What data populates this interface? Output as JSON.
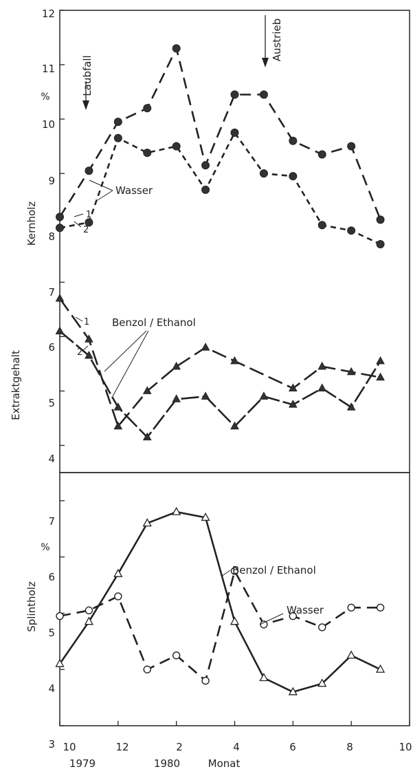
{
  "chart_data": [
    {
      "type": "line",
      "panel": "upper",
      "title": "",
      "xlabel": "Monat",
      "ylabel": "Extraktgehalt",
      "ylabel_secondary": "Kernholz",
      "unit_label": "%",
      "xlim": [
        10,
        22
      ],
      "ylim": [
        3.5,
        12
      ],
      "x_ticks": [
        10,
        12,
        14,
        16,
        18,
        20,
        22
      ],
      "x_tick_labels": [
        "10",
        "12",
        "2",
        "4",
        "6",
        "8",
        "10"
      ],
      "y_ticks": [
        4,
        5,
        6,
        7,
        8,
        9,
        10,
        11,
        12
      ],
      "year_labels": [
        {
          "x": 10,
          "text": "1979"
        },
        {
          "x": 14,
          "text": "1980"
        }
      ],
      "series": [
        {
          "label": "1",
          "marker": "filled-circle",
          "line": "dashed",
          "x": [
            10,
            11,
            12,
            13,
            14,
            15,
            16,
            17,
            18,
            19,
            20,
            21
          ],
          "y": [
            8.2,
            9.05,
            9.95,
            10.2,
            11.3,
            9.15,
            10.45,
            10.45,
            9.6,
            9.35,
            9.5,
            8.15
          ]
        },
        {
          "label": "2",
          "marker": "filled-circle",
          "line": "dash-dot",
          "x": [
            10,
            11,
            12,
            13,
            14,
            15,
            16,
            17,
            18,
            19,
            20,
            21
          ],
          "y": [
            8.0,
            8.1,
            9.65,
            9.38,
            9.5,
            8.7,
            9.75,
            9.0,
            8.95,
            8.05,
            7.95,
            7.7
          ]
        },
        {
          "label": "1",
          "marker": "filled-triangle",
          "line": "long-dash",
          "x": [
            10,
            11,
            12,
            13,
            14,
            15,
            16,
            18,
            19,
            20,
            21
          ],
          "y": [
            6.7,
            5.95,
            4.35,
            5.0,
            5.45,
            5.8,
            5.55,
            5.05,
            5.45,
            5.35,
            5.25
          ]
        },
        {
          "label": "2",
          "marker": "filled-triangle",
          "line": "solid-dash",
          "x": [
            10,
            11,
            12,
            13,
            14,
            15,
            16,
            17,
            18,
            19,
            20,
            21
          ],
          "y": [
            6.1,
            5.65,
            4.7,
            4.15,
            4.85,
            4.9,
            4.35,
            4.9,
            4.75,
            5.05,
            4.7,
            5.55
          ]
        }
      ],
      "annotations": [
        {
          "text": "Laubfall",
          "x": 11,
          "arrow": "down"
        },
        {
          "text": "Austrieb",
          "x": 17,
          "arrow": "down"
        },
        {
          "text": "Wasser",
          "refers_to": [
            "1",
            "2"
          ],
          "group": "circles"
        },
        {
          "text": "Benzol / Ethanol",
          "refers_to": [
            "1",
            "2"
          ],
          "group": "triangles"
        }
      ]
    },
    {
      "type": "line",
      "panel": "lower",
      "title": "",
      "xlabel": "Monat",
      "ylabel": "Splintholz",
      "unit_label": "%",
      "xlim": [
        10,
        22
      ],
      "ylim": [
        3,
        7.5
      ],
      "x_ticks": [
        10,
        12,
        14,
        16,
        18,
        20,
        22
      ],
      "x_tick_labels": [
        "10",
        "12",
        "2",
        "4",
        "6",
        "8",
        "10"
      ],
      "y_ticks": [
        3,
        4,
        5,
        6,
        7
      ],
      "year_labels": [
        {
          "x": 10,
          "text": "1979"
        },
        {
          "x": 14,
          "text": "1980"
        }
      ],
      "series": [
        {
          "name": "Benzol / Ethanol",
          "marker": "open-triangle",
          "line": "solid",
          "x": [
            10,
            11,
            12,
            13,
            14,
            15,
            16,
            17,
            18,
            19,
            20,
            21
          ],
          "y": [
            4.1,
            4.85,
            5.7,
            6.6,
            6.8,
            6.7,
            4.85,
            3.85,
            3.6,
            3.75,
            4.25,
            4.0
          ]
        },
        {
          "name": "Wasser",
          "marker": "open-circle",
          "line": "dashed",
          "x": [
            10,
            11,
            12,
            13,
            14,
            15,
            16,
            17,
            18,
            19,
            20,
            21
          ],
          "y": [
            4.95,
            5.05,
            5.3,
            4.0,
            4.25,
            3.8,
            5.75,
            4.8,
            4.95,
            4.75,
            5.1,
            5.1
          ]
        }
      ]
    }
  ],
  "labels": {
    "y_top": [
      "12",
      "11",
      "10",
      "9",
      "8",
      "7",
      "6",
      "5",
      "4"
    ],
    "y_bottom": [
      "7",
      "6",
      "5",
      "4",
      "3"
    ],
    "pct_top": "%",
    "pct_bottom": "%",
    "kernholz": "Kernholz",
    "extraktgehalt": "Extraktgehalt",
    "splintholz": "Splintholz",
    "laubfall": "Laubfall",
    "austrieb": "Austrieb",
    "wasser_top": "Wasser",
    "benzol_top": "Benzol / Ethanol",
    "benzol_bottom": "Benzol / Ethanol",
    "wasser_bottom": "Wasser",
    "s1a": "1",
    "s2a": "2",
    "s1b": "1",
    "s2b": "2",
    "x_ticks": [
      "10",
      "12",
      "2",
      "4",
      "6",
      "8",
      "10"
    ],
    "year_1979": "1979",
    "year_1980": "1980",
    "monat": "Monat"
  }
}
